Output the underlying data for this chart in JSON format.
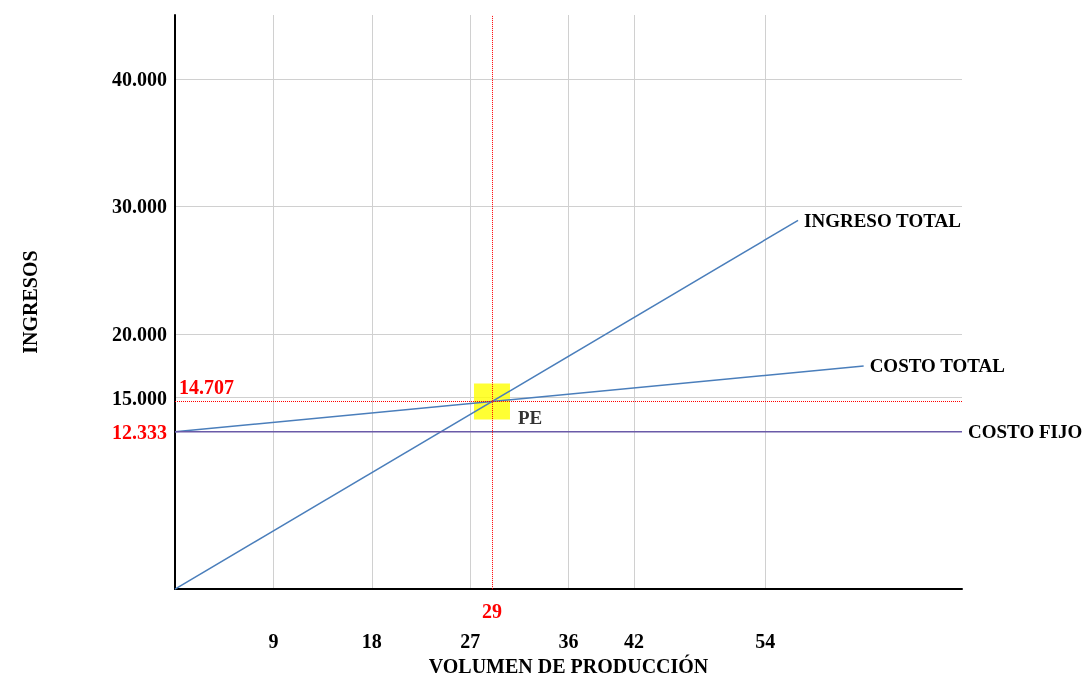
{
  "chart_data": {
    "type": "line",
    "xlabel": "VOLUMEN DE PRODUCCIÓN",
    "ylabel": "INGRESOS",
    "xlim": [
      0,
      72
    ],
    "xticks": [
      9,
      18,
      27,
      36,
      42,
      54
    ],
    "ylim": [
      0,
      45000
    ],
    "yticks": [
      {
        "value": 15000,
        "label": "15.000"
      },
      {
        "value": 20000,
        "label": "20.000"
      },
      {
        "value": 30000,
        "label": "30.000"
      },
      {
        "value": 40000,
        "label": "40.000"
      }
    ],
    "grid": true,
    "legend": false,
    "series": [
      {
        "name": "INGRESO TOTAL",
        "color": "#4a7ebb",
        "x": [
          0,
          57
        ],
        "values": [
          0,
          28900
        ]
      },
      {
        "name": "COSTO TOTAL",
        "color": "#4a7ebb",
        "x": [
          0,
          63
        ],
        "values": [
          12333,
          17490
        ]
      },
      {
        "name": "COSTO FIJO",
        "color": "#6a5aa8",
        "x": [
          0,
          72
        ],
        "values": [
          12333,
          12333
        ],
        "value_labels": [
          "12.333",
          null
        ]
      },
      {
        "name": "PE",
        "type": "scatter",
        "marker": "square",
        "color": "#ffff00",
        "x": [
          29
        ],
        "values": [
          14707
        ]
      }
    ],
    "ref_lines": [
      {
        "axis": "x",
        "value": 29,
        "label": "29",
        "color": "#ff0000",
        "line_style": "dotted"
      },
      {
        "axis": "y",
        "value": 14707,
        "label": "14.707",
        "color": "#ff0000",
        "line_style": "dotted"
      }
    ]
  }
}
